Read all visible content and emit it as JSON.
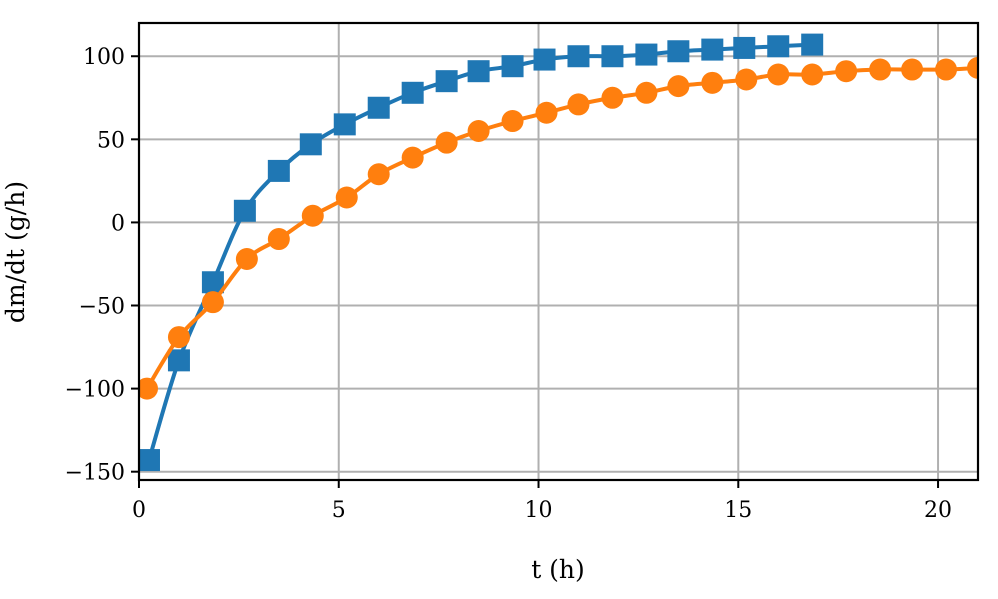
{
  "chart_data": {
    "type": "line",
    "title": "",
    "xlabel": "t (h)",
    "ylabel": "dm/dt (g/h)",
    "xlim": [
      0,
      21
    ],
    "ylim": [
      -155,
      120
    ],
    "xticks": [
      0,
      5,
      10,
      15,
      20
    ],
    "yticks": [
      -150,
      -100,
      -50,
      0,
      50,
      100
    ],
    "grid": true,
    "legend": "none",
    "series": [
      {
        "color": "#1f77b4",
        "marker": "square",
        "x": [
          0.25,
          1.0,
          1.85,
          2.65,
          3.5,
          4.3,
          5.15,
          6.0,
          6.85,
          7.7,
          8.5,
          9.35,
          10.15,
          11.0,
          11.85,
          12.7,
          13.5,
          14.35,
          15.15,
          16.0,
          16.85
        ],
        "y": [
          -143,
          -83,
          -36,
          7,
          31,
          47,
          59,
          69,
          78,
          85,
          91,
          94,
          98,
          100,
          100,
          101,
          103,
          104,
          105,
          106,
          107
        ]
      },
      {
        "color": "#ff7f0e",
        "marker": "circle",
        "x": [
          0.2,
          1.0,
          1.85,
          2.7,
          3.5,
          4.35,
          5.2,
          6.0,
          6.85,
          7.7,
          8.5,
          9.35,
          10.2,
          11.0,
          11.85,
          12.7,
          13.5,
          14.35,
          15.2,
          16.0,
          16.85,
          17.7,
          18.55,
          19.35,
          20.2,
          21.0
        ],
        "y": [
          -100,
          -69,
          -48,
          -22,
          -10,
          4,
          15,
          29,
          39,
          48,
          55,
          61,
          66,
          71,
          75,
          78,
          82,
          84,
          86,
          89,
          89,
          91,
          92,
          92,
          92,
          93
        ]
      }
    ]
  }
}
